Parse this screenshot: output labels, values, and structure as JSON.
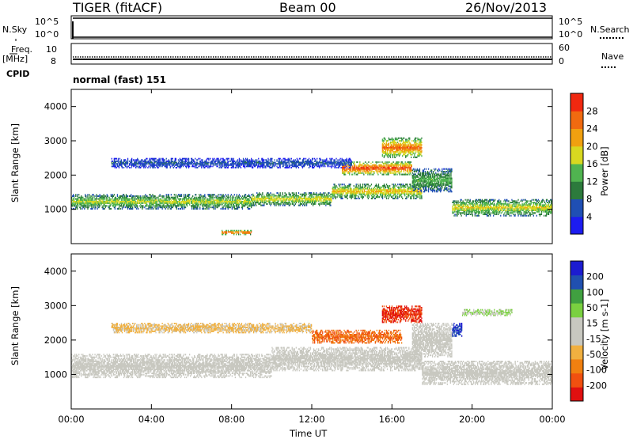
{
  "header": {
    "radar": "TIGER (fitACF)",
    "beam": "Beam 00",
    "date": "26/Nov/2013"
  },
  "aux": {
    "nsky_label": "N.Sky",
    "nsky_ticks": [
      "10^5",
      "10^0"
    ],
    "nsearch_label": "N.Search",
    "nsearch_ticks": [
      "10^5",
      "10^0"
    ],
    "freq_label_line1": "Freq.",
    "freq_label_line2": "[MHz]",
    "freq_ticks": [
      "10",
      "8"
    ],
    "nave_label": "Nave",
    "nave_ticks": [
      "60",
      "0"
    ],
    "cpid_label": "CPID",
    "cpid_text": "normal (fast) 151"
  },
  "colors": {
    "power": [
      "#1c1cf0",
      "#1f4fb4",
      "#2c7a3c",
      "#50b450",
      "#d8d820",
      "#f0a010",
      "#f06a10",
      "#f02810"
    ],
    "velocity": [
      "#e01010",
      "#f05010",
      "#f08010",
      "#f0b040",
      "#c8c8c0",
      "#c8c8c0",
      "#7ad040",
      "#40a040",
      "#2050b0",
      "#1c1cd0"
    ]
  },
  "chart_data": [
    {
      "type": "heatmap",
      "name": "power",
      "ylabel": "Slant Range [km]",
      "yticks": [
        "1000",
        "2000",
        "3000",
        "4000"
      ],
      "ylim": [
        0,
        4500
      ],
      "colorbar_label": "Power [dB]",
      "colorbar_ticks": [
        "4",
        "8",
        "12",
        "16",
        "20",
        "24",
        "28"
      ],
      "colorbar_range": [
        0,
        32
      ],
      "bands": [
        {
          "t0": 0,
          "t1": 9,
          "r0": 1000,
          "r1": 1450,
          "level": 0.5
        },
        {
          "t0": 9,
          "t1": 13,
          "r0": 1100,
          "r1": 1500,
          "level": 0.55
        },
        {
          "t0": 13,
          "t1": 17.5,
          "r0": 1300,
          "r1": 1750,
          "level": 0.6
        },
        {
          "t0": 13.5,
          "t1": 17,
          "r0": 2000,
          "r1": 2400,
          "level": 0.85
        },
        {
          "t0": 15.5,
          "t1": 17.5,
          "r0": 2500,
          "r1": 3100,
          "level": 0.75
        },
        {
          "t0": 17,
          "t1": 19,
          "r0": 1500,
          "r1": 2200,
          "level": 0.4
        },
        {
          "t0": 19,
          "t1": 24,
          "r0": 800,
          "r1": 1300,
          "level": 0.55
        },
        {
          "t0": 2,
          "t1": 14,
          "r0": 2200,
          "r1": 2500,
          "level": 0.2
        },
        {
          "t0": 7.5,
          "t1": 9,
          "r0": 250,
          "r1": 400,
          "level": 0.95
        }
      ]
    },
    {
      "type": "heatmap",
      "name": "velocity",
      "ylabel": "Slant Range [km]",
      "yticks": [
        "1000",
        "2000",
        "3000",
        "4000"
      ],
      "ylim": [
        0,
        4500
      ],
      "xlabel": "Time UT",
      "xticks": [
        "00:00",
        "04:00",
        "08:00",
        "12:00",
        "16:00",
        "20:00",
        "00:00"
      ],
      "colorbar_label": "Velocity [m s-1]",
      "colorbar_ticks": [
        "-200",
        "-100",
        "-50",
        "-15",
        "15",
        "50",
        "100",
        "200"
      ],
      "colorbar_range": [
        -250,
        250
      ],
      "bands": [
        {
          "t0": 0,
          "t1": 10,
          "r0": 900,
          "r1": 1600,
          "vel": 0
        },
        {
          "t0": 10,
          "t1": 17.5,
          "r0": 1100,
          "r1": 1800,
          "vel": 0
        },
        {
          "t0": 17.5,
          "t1": 24,
          "r0": 700,
          "r1": 1400,
          "vel": 0
        },
        {
          "t0": 2,
          "t1": 12,
          "r0": 2200,
          "r1": 2500,
          "vel": -60
        },
        {
          "t0": 12,
          "t1": 16.5,
          "r0": 1900,
          "r1": 2300,
          "vel": -150
        },
        {
          "t0": 15.5,
          "t1": 17.5,
          "r0": 2500,
          "r1": 3000,
          "vel": -200
        },
        {
          "t0": 17,
          "t1": 19,
          "r0": 1500,
          "r1": 2500,
          "vel": 15
        },
        {
          "t0": 19,
          "t1": 19.5,
          "r0": 2100,
          "r1": 2500,
          "vel": 200
        },
        {
          "t0": 19.5,
          "t1": 22,
          "r0": 2700,
          "r1": 2900,
          "vel": 50
        }
      ]
    }
  ]
}
